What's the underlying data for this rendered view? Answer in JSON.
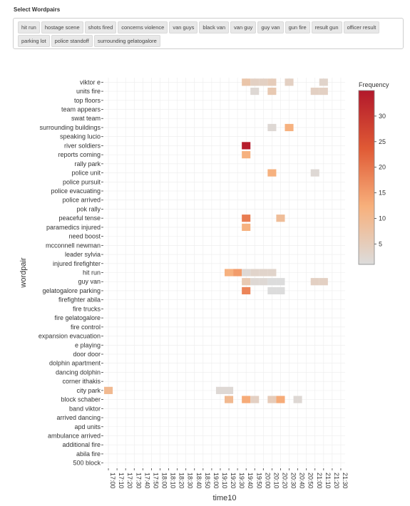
{
  "filter": {
    "title": "Select Wordpairs",
    "options": [
      "hit run",
      "hostage scene",
      "shots fired",
      "concerns violence",
      "van guys",
      "black van",
      "van guy",
      "guy van",
      "gun fire",
      "result gun",
      "officer result",
      "parking lot",
      "police standoff",
      "surrounding gelatogalore"
    ]
  },
  "chart_data": {
    "type": "heatmap",
    "xlabel": "time10",
    "ylabel": "wordpair",
    "x": [
      "17:00",
      "17:10",
      "17:20",
      "17:30",
      "17:40",
      "17:50",
      "18:00",
      "18:10",
      "18:20",
      "18:30",
      "18:40",
      "18:50",
      "19:00",
      "19:10",
      "19:20",
      "19:30",
      "19:40",
      "19:50",
      "20:00",
      "20:10",
      "20:20",
      "20:30",
      "20:40",
      "20:50",
      "21:00",
      "21:10",
      "21:20",
      "21:30"
    ],
    "y": [
      "viktor e",
      "units fire",
      "top floors",
      "team appears",
      "swat team",
      "surrounding buildings",
      "speaking lucio",
      "river soldiers",
      "reports coming",
      "rally park",
      "police unit",
      "police pursuit",
      "police evacuating",
      "police arrived",
      "pok rally",
      "peaceful tense",
      "paramedics injured",
      "need boost",
      "mcconnell newman",
      "leader sylvia",
      "injured firefighter",
      "hit run",
      "guy van",
      "gelatogalore parking",
      "firefighter abila",
      "fire trucks",
      "fire gelatogalore",
      "fire control",
      "expansion evacuation",
      "e playing",
      "door door",
      "dolphin apartment",
      "dancing dolphin",
      "corner ithakis",
      "city park",
      "block schaber",
      "band viktor",
      "arrived dancing",
      "apd units",
      "ambulance arrived",
      "additional fire",
      "abila fire",
      "500 block"
    ],
    "cells": [
      {
        "x": "19:40",
        "y": "viktor e",
        "value": 7
      },
      {
        "x": "19:50",
        "y": "viktor e",
        "value": 4
      },
      {
        "x": "20:00",
        "y": "viktor e",
        "value": 4
      },
      {
        "x": "20:10",
        "y": "viktor e",
        "value": 5
      },
      {
        "x": "20:30",
        "y": "viktor e",
        "value": 4
      },
      {
        "x": "21:10",
        "y": "viktor e",
        "value": 3
      },
      {
        "x": "19:50",
        "y": "units fire",
        "value": 2
      },
      {
        "x": "20:10",
        "y": "units fire",
        "value": 6
      },
      {
        "x": "21:00",
        "y": "units fire",
        "value": 4
      },
      {
        "x": "21:10",
        "y": "units fire",
        "value": 4
      },
      {
        "x": "20:10",
        "y": "surrounding buildings",
        "value": 2
      },
      {
        "x": "20:30",
        "y": "surrounding buildings",
        "value": 12
      },
      {
        "x": "19:40",
        "y": "river soldiers",
        "value": 34
      },
      {
        "x": "19:40",
        "y": "reports coming",
        "value": 12
      },
      {
        "x": "20:10",
        "y": "police unit",
        "value": 12
      },
      {
        "x": "21:00",
        "y": "police unit",
        "value": 2
      },
      {
        "x": "19:40",
        "y": "peaceful tense",
        "value": 19
      },
      {
        "x": "20:20",
        "y": "peaceful tense",
        "value": 9
      },
      {
        "x": "19:40",
        "y": "paramedics injured",
        "value": 12
      },
      {
        "x": "19:20",
        "y": "hit run",
        "value": 12
      },
      {
        "x": "19:30",
        "y": "hit run",
        "value": 15
      },
      {
        "x": "19:40",
        "y": "hit run",
        "value": 2
      },
      {
        "x": "19:50",
        "y": "hit run",
        "value": 3
      },
      {
        "x": "20:00",
        "y": "hit run",
        "value": 3
      },
      {
        "x": "20:10",
        "y": "hit run",
        "value": 3
      },
      {
        "x": "19:40",
        "y": "guy van",
        "value": 6
      },
      {
        "x": "19:50",
        "y": "guy van",
        "value": 2
      },
      {
        "x": "20:00",
        "y": "guy van",
        "value": 2
      },
      {
        "x": "20:10",
        "y": "guy van",
        "value": 1
      },
      {
        "x": "20:20",
        "y": "guy van",
        "value": 1
      },
      {
        "x": "21:00",
        "y": "guy van",
        "value": 4
      },
      {
        "x": "21:10",
        "y": "guy van",
        "value": 4
      },
      {
        "x": "19:40",
        "y": "gelatogalore parking",
        "value": 18
      },
      {
        "x": "20:10",
        "y": "gelatogalore parking",
        "value": 1
      },
      {
        "x": "20:20",
        "y": "gelatogalore parking",
        "value": 1
      },
      {
        "x": "17:00",
        "y": "city park",
        "value": 10
      },
      {
        "x": "19:10",
        "y": "city park",
        "value": 2
      },
      {
        "x": "19:20",
        "y": "city park",
        "value": 2
      },
      {
        "x": "19:20",
        "y": "block schaber",
        "value": 10
      },
      {
        "x": "19:40",
        "y": "block schaber",
        "value": 13
      },
      {
        "x": "19:50",
        "y": "block schaber",
        "value": 4
      },
      {
        "x": "20:10",
        "y": "block schaber",
        "value": 5
      },
      {
        "x": "20:20",
        "y": "block schaber",
        "value": 13
      },
      {
        "x": "20:40",
        "y": "block schaber",
        "value": 2
      }
    ],
    "color_scale": {
      "title": "Frequency",
      "min": 1,
      "max": 35,
      "ticks": [
        5,
        10,
        15,
        20,
        25,
        30
      ],
      "colors": [
        "#dcdcdc",
        "#f7b07c",
        "#e05a35",
        "#b2182b"
      ]
    },
    "grid": true
  }
}
